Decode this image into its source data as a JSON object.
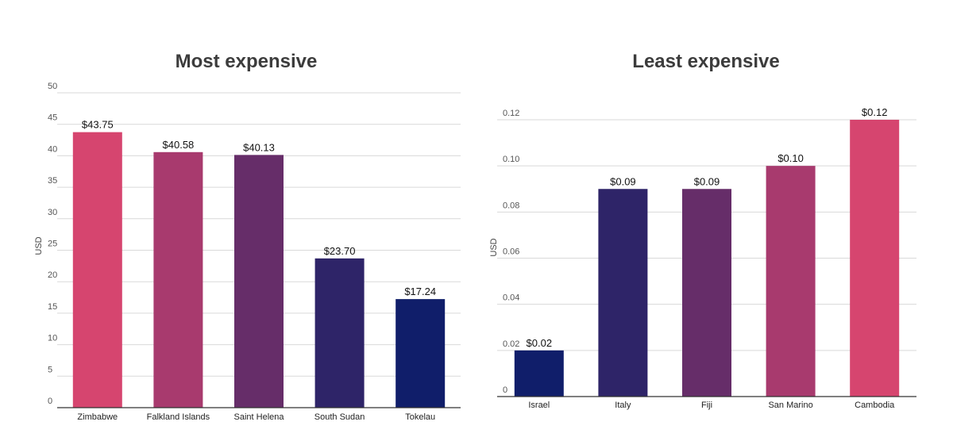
{
  "chart_data": [
    {
      "type": "bar",
      "title": "Most expensive",
      "ylabel": "USD",
      "xlabel": "",
      "ylim": [
        0,
        50
      ],
      "yticks": [
        0,
        5,
        10,
        15,
        20,
        25,
        30,
        35,
        40,
        45,
        50
      ],
      "ytick_labels": [
        "0",
        "5",
        "10",
        "15",
        "20",
        "25",
        "30",
        "35",
        "40",
        "45",
        "50"
      ],
      "categories": [
        "Zimbabwe",
        "Falkland Islands",
        "Saint Helena",
        "South Sudan",
        "Tokelau"
      ],
      "values": [
        43.75,
        40.58,
        40.13,
        23.7,
        17.24
      ],
      "data_labels": [
        "$43.75",
        "$40.58",
        "$40.13",
        "$23.70",
        "$17.24"
      ],
      "colors": [
        "#d6456f",
        "#a83a6e",
        "#662d69",
        "#2e2468",
        "#101e6a"
      ],
      "grid": true
    },
    {
      "type": "bar",
      "title": "Least expensive",
      "ylabel": "USD",
      "xlabel": "",
      "ylim": [
        0,
        0.12
      ],
      "yticks": [
        0,
        0.02,
        0.04,
        0.06,
        0.08,
        0.1,
        0.12
      ],
      "ytick_labels": [
        "0",
        "0.02",
        "0.04",
        "0.06",
        "0.08",
        "0.10",
        "0.12"
      ],
      "categories": [
        "Israel",
        "Italy",
        "Fiji",
        "San Marino",
        "Cambodia"
      ],
      "values": [
        0.02,
        0.09,
        0.09,
        0.1,
        0.12
      ],
      "data_labels": [
        "$0.02",
        "$0.09",
        "$0.09",
        "$0.10",
        "$0.12"
      ],
      "colors": [
        "#101e6a",
        "#2e2468",
        "#662d69",
        "#a83a6e",
        "#d6456f"
      ],
      "grid": true
    }
  ]
}
